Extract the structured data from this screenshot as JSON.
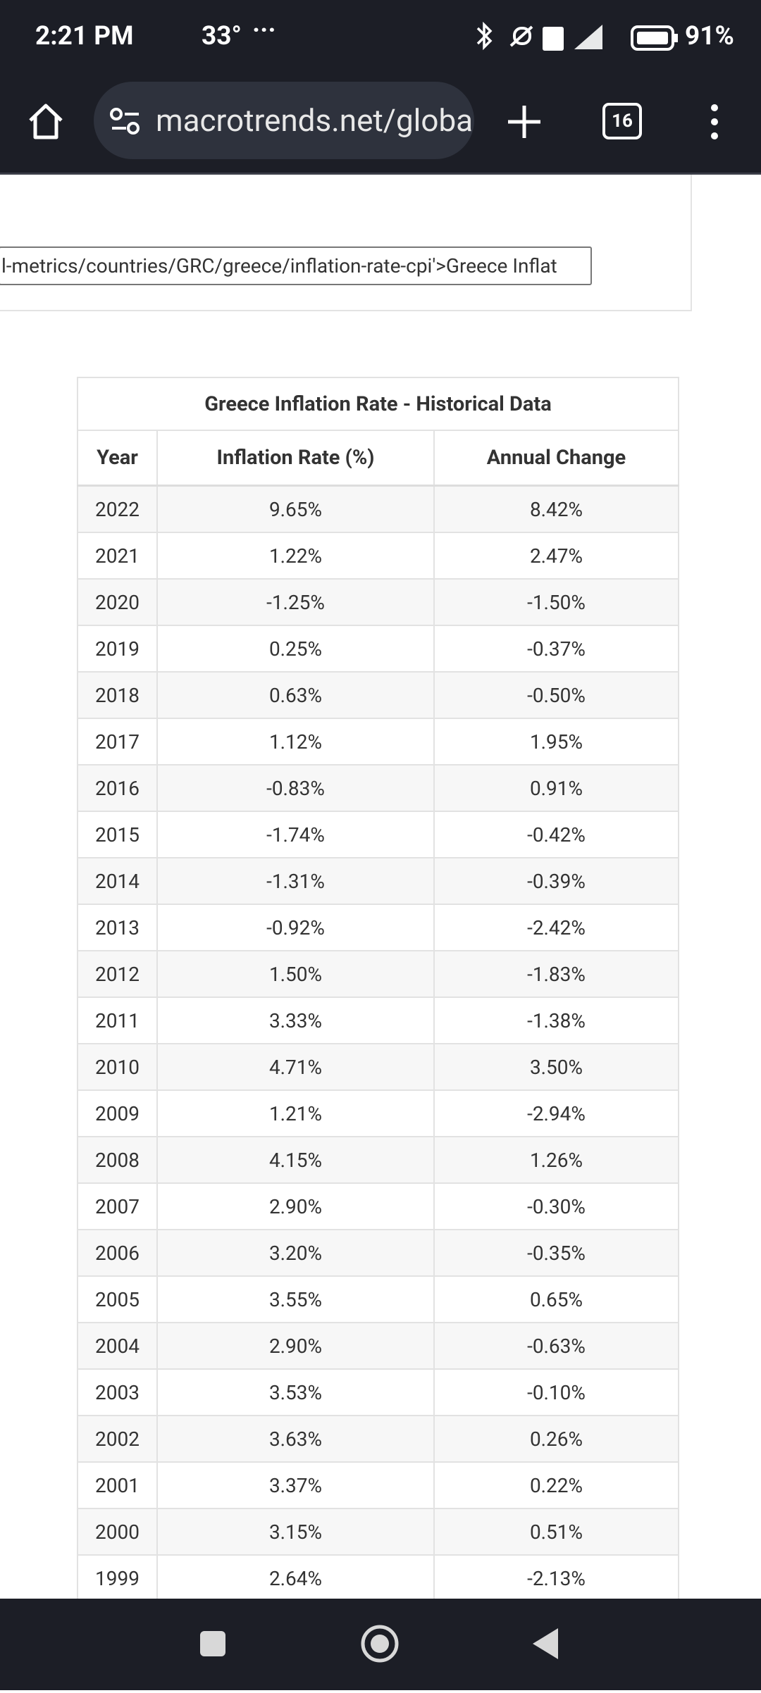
{
  "status_bar": {
    "time": "2:21 PM",
    "temperature": "33°",
    "battery": "91%"
  },
  "browser": {
    "url": "macrotrends.net/globa",
    "tab_count": "16"
  },
  "embed_code": "l-metrics/countries/GRC/greece/inflation-rate-cpi'>Greece Inflat",
  "table": {
    "title": "Greece Inflation Rate - Historical Data",
    "headers": [
      "Year",
      "Inflation Rate (%)",
      "Annual Change"
    ],
    "rows": [
      [
        "2022",
        "9.65%",
        "8.42%"
      ],
      [
        "2021",
        "1.22%",
        "2.47%"
      ],
      [
        "2020",
        "-1.25%",
        "-1.50%"
      ],
      [
        "2019",
        "0.25%",
        "-0.37%"
      ],
      [
        "2018",
        "0.63%",
        "-0.50%"
      ],
      [
        "2017",
        "1.12%",
        "1.95%"
      ],
      [
        "2016",
        "-0.83%",
        "0.91%"
      ],
      [
        "2015",
        "-1.74%",
        "-0.42%"
      ],
      [
        "2014",
        "-1.31%",
        "-0.39%"
      ],
      [
        "2013",
        "-0.92%",
        "-2.42%"
      ],
      [
        "2012",
        "1.50%",
        "-1.83%"
      ],
      [
        "2011",
        "3.33%",
        "-1.38%"
      ],
      [
        "2010",
        "4.71%",
        "3.50%"
      ],
      [
        "2009",
        "1.21%",
        "-2.94%"
      ],
      [
        "2008",
        "4.15%",
        "1.26%"
      ],
      [
        "2007",
        "2.90%",
        "-0.30%"
      ],
      [
        "2006",
        "3.20%",
        "-0.35%"
      ],
      [
        "2005",
        "3.55%",
        "0.65%"
      ],
      [
        "2004",
        "2.90%",
        "-0.63%"
      ],
      [
        "2003",
        "3.53%",
        "-0.10%"
      ],
      [
        "2002",
        "3.63%",
        "0.26%"
      ],
      [
        "2001",
        "3.37%",
        "0.22%"
      ],
      [
        "2000",
        "3.15%",
        "0.51%"
      ],
      [
        "1999",
        "2.64%",
        "-2.13%"
      ]
    ]
  }
}
